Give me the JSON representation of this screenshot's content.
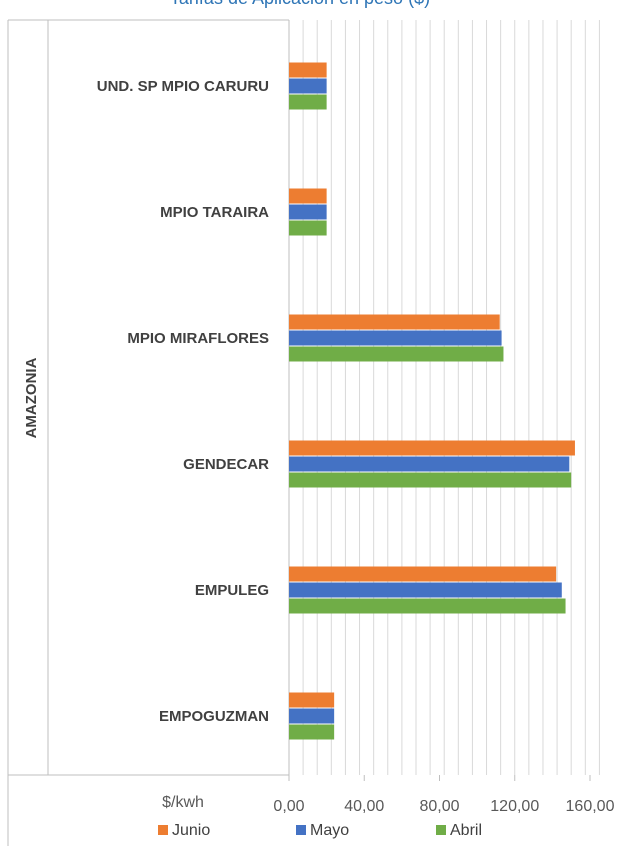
{
  "chart_data": {
    "type": "bar",
    "orientation": "horizontal",
    "title": "Tarifas de Aplicación en peso ($)",
    "group_label": "AMAZONIA",
    "xlabel": "$/kwh",
    "xlim": [
      0,
      175
    ],
    "x_ticks": [
      "0,00",
      "40,00",
      "80,00",
      "120,00",
      "160,00"
    ],
    "grid": true,
    "legend_position": "bottom",
    "categories": [
      "UND. SP MPIO CARURU",
      "MPIO TARAIRA",
      "MPIO MIRAFLORES",
      "GENDECAR",
      "EMPULEG",
      "EMPOGUZMAN"
    ],
    "series": [
      {
        "name": "Junio",
        "color": "#ed7d31",
        "values": [
          20,
          20,
          112,
          152,
          142,
          24
        ]
      },
      {
        "name": "Mayo",
        "color": "#4472c4",
        "values": [
          20,
          20,
          113,
          149,
          145,
          24
        ]
      },
      {
        "name": "Abril",
        "color": "#70ad47",
        "values": [
          20,
          20,
          114,
          150,
          147,
          24
        ]
      }
    ]
  }
}
